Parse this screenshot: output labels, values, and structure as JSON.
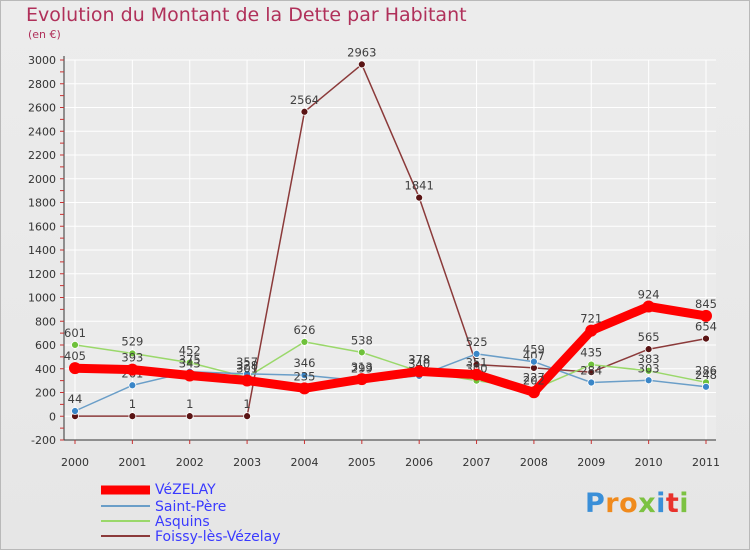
{
  "chart_data": {
    "type": "line",
    "title": "Evolution du Montant de la Dette par Habitant",
    "subtitle": "(en €)",
    "xlabel": "",
    "ylabel": "",
    "categories": [
      "2000",
      "2001",
      "2002",
      "2003",
      "2004",
      "2005",
      "2006",
      "2007",
      "2008",
      "2009",
      "2010",
      "2011"
    ],
    "ylim": [
      -200,
      3000
    ],
    "yticks": [
      -200,
      0,
      200,
      400,
      600,
      800,
      1000,
      1200,
      1400,
      1600,
      1800,
      2000,
      2200,
      2400,
      2600,
      2800,
      3000
    ],
    "grid": true,
    "legend_position": "bottom-left",
    "series": [
      {
        "name": "Foissy-lès-Vézelay",
        "color": "#8b3a3a",
        "marker_color": "#5a1414",
        "values": [
          1,
          1,
          1,
          1,
          2564,
          2963,
          1841,
          435,
          407,
          371,
          565,
          654
        ],
        "labels": [
          "",
          "1",
          "1",
          "1",
          "2564",
          "2963",
          "1841",
          "",
          "407",
          "",
          "565",
          "654"
        ]
      },
      {
        "name": "Asquins",
        "color": "#9ad86a",
        "marker_color": "#6ec13a",
        "values": [
          601,
          529,
          452,
          328,
          626,
          538,
          378,
          300,
          227,
          435,
          383,
          286
        ],
        "labels": [
          "601",
          "529",
          "452",
          "328",
          "626",
          "538",
          "378",
          "300",
          "227",
          "435",
          "383",
          "286"
        ]
      },
      {
        "name": "Saint-Père",
        "color": "#6a9ec8",
        "marker_color": "#3a86c8",
        "values": [
          44,
          261,
          375,
          357,
          346,
          299,
          340,
          525,
          459,
          284,
          303,
          248
        ],
        "labels": [
          "44",
          "261",
          "375",
          "357",
          "346",
          "299",
          "340",
          "525",
          "459",
          "284",
          "303",
          "248"
        ]
      },
      {
        "name": "VéZELAY",
        "color": "#ff0000",
        "marker_color": "#ff0000",
        "values": [
          405,
          393,
          343,
          301,
          235,
          313,
          378,
          351,
          202,
          721,
          924,
          845
        ],
        "labels": [
          "405",
          "393",
          "343",
          "301",
          "235",
          "313",
          "378",
          "351",
          "202",
          "721",
          "924",
          "845"
        ]
      }
    ],
    "legend": [
      {
        "label": "VéZELAY",
        "color": "#ff0000",
        "text_color": "#3a3aff",
        "weight": 9
      },
      {
        "label": "Saint-Père",
        "color": "#6a9ec8",
        "text_color": "#3a3aff",
        "weight": 2
      },
      {
        "label": "Asquins",
        "color": "#9ad86a",
        "text_color": "#3a3aff",
        "weight": 2
      },
      {
        "label": "Foissy-lès-Vézelay",
        "color": "#8b3a3a",
        "text_color": "#3a3aff",
        "weight": 2
      }
    ]
  },
  "logo": {
    "letters": [
      "P",
      "r",
      "o",
      "x",
      "i",
      "t",
      "i"
    ],
    "colors": [
      "#3a8fd8",
      "#f08a1c",
      "#f08a1c",
      "#7cc242",
      "#3a8fd8",
      "#e8322c",
      "#7cc242"
    ]
  }
}
